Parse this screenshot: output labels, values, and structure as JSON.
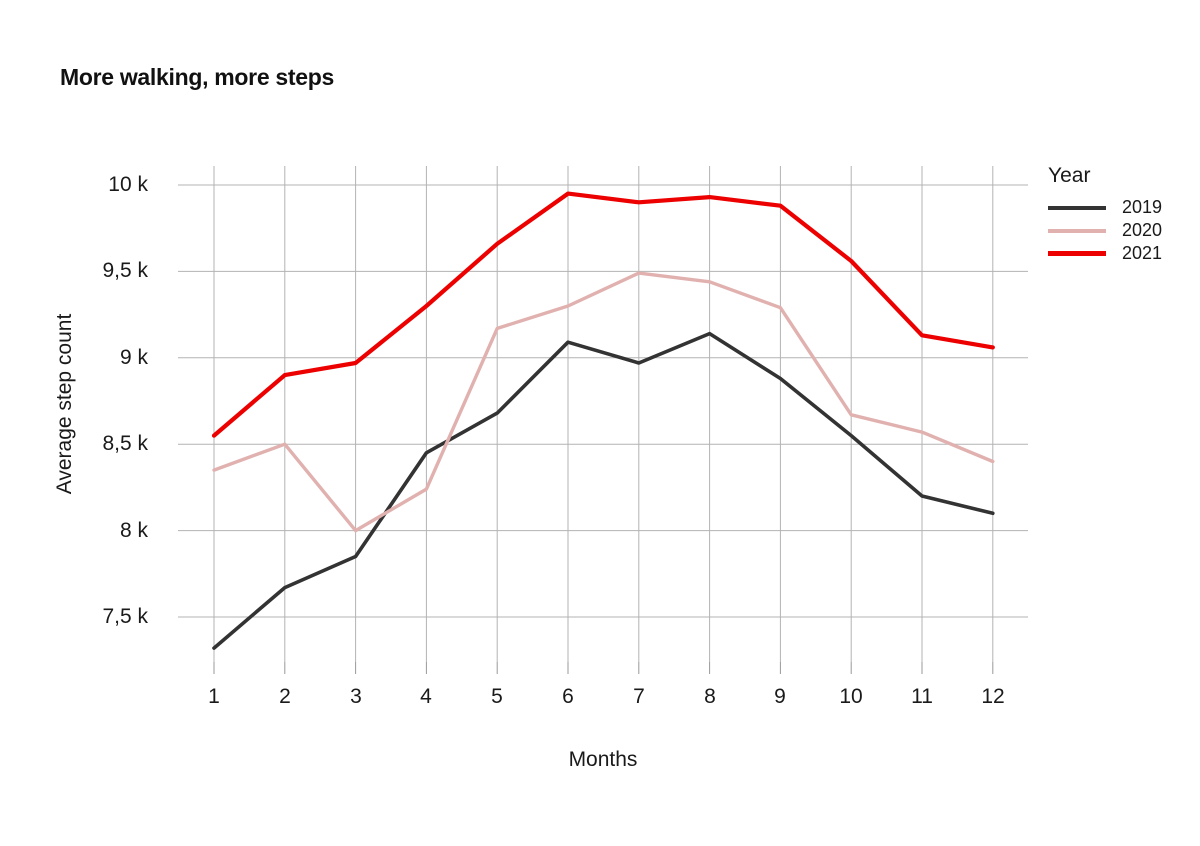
{
  "chart_data": {
    "type": "line",
    "title": "More walking, more steps",
    "xlabel": "Months",
    "ylabel": "Average step count",
    "x": [
      1,
      2,
      3,
      4,
      5,
      6,
      7,
      8,
      9,
      10,
      11,
      12
    ],
    "y_ticks": [
      10000,
      9500,
      9000,
      8500,
      8000,
      7500
    ],
    "y_tick_labels": [
      "10 k",
      "9,5 k",
      "9 k",
      "8,5 k",
      "8 k",
      "7,5 k"
    ],
    "ylim": [
      7240,
      10110
    ],
    "grid": true,
    "legend": {
      "title": "Year",
      "position": "top-right"
    },
    "series": [
      {
        "name": "2019",
        "color": "#333333",
        "line_width": 3.6,
        "values": [
          7320,
          7670,
          7850,
          8450,
          8680,
          9090,
          8970,
          9140,
          8880,
          8550,
          8200,
          8100
        ]
      },
      {
        "name": "2020",
        "color": "#e0b1af",
        "line_width": 3.4,
        "values": [
          8350,
          8500,
          8000,
          8240,
          9170,
          9300,
          9490,
          9440,
          9290,
          8670,
          8570,
          8400
        ]
      },
      {
        "name": "2021",
        "color": "#ec0000",
        "line_width": 4.2,
        "values": [
          8550,
          8900,
          8970,
          9300,
          9660,
          9950,
          9900,
          9930,
          9880,
          9560,
          9130,
          9060
        ]
      }
    ]
  },
  "style": {
    "background": "#ffffff",
    "text_color": "#1a1a1a",
    "grid_color": "#b3b3b3",
    "axis_tick_color": "#999999"
  }
}
